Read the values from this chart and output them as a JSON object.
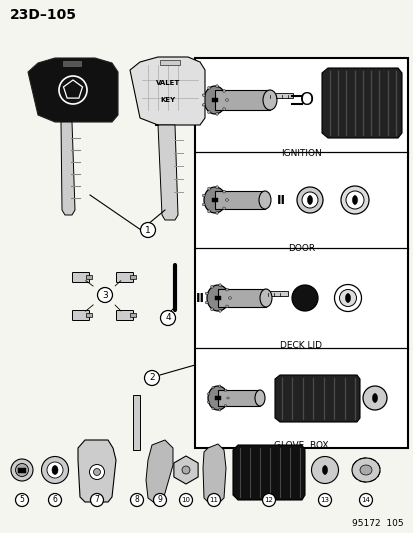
{
  "title": "23D–105",
  "bg_color": "#f5f5f0",
  "border_color": "#000000",
  "text_color": "#000000",
  "footer": "95172  105",
  "section_labels": [
    "IGNITION",
    "DOOR",
    "DECK LID",
    "GLOVE  BOX"
  ],
  "item_numbers": [
    "1",
    "2",
    "3",
    "4",
    "5",
    "6",
    "7",
    "8",
    "9",
    "10",
    "11",
    "12",
    "13",
    "14"
  ]
}
